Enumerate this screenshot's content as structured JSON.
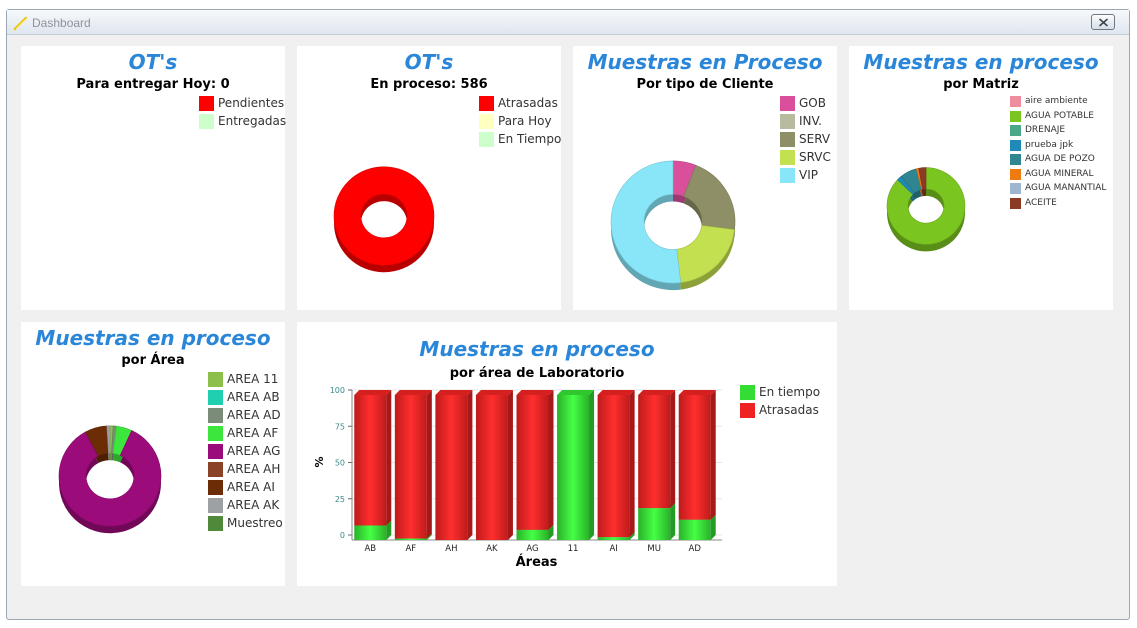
{
  "window": {
    "title": "Dashboard"
  },
  "panels": {
    "ot_hoy": {
      "title": "OT's",
      "subtitle": "Para entregar Hoy: 0",
      "legend": [
        {
          "label": "Pendientes",
          "color": "#ff0000"
        },
        {
          "label": "Entregadas",
          "color": "#ccffcc"
        }
      ]
    },
    "ot_proceso": {
      "title": "OT's",
      "subtitle": "En proceso: 586",
      "legend": [
        {
          "label": "Atrasadas",
          "color": "#ff0000"
        },
        {
          "label": "Para Hoy",
          "color": "#ffffc0"
        },
        {
          "label": "En Tiempo",
          "color": "#ccffcc"
        }
      ]
    },
    "muestras_cliente": {
      "title": "Muestras en Proceso",
      "subtitle": "Por tipo de Cliente",
      "legend": [
        {
          "label": "GOB",
          "color": "#d94f9c"
        },
        {
          "label": "INV.",
          "color": "#b8bb9f"
        },
        {
          "label": "SERV",
          "color": "#8e8f66"
        },
        {
          "label": "SRVC",
          "color": "#c2e04f"
        },
        {
          "label": "VIP",
          "color": "#88e6f8"
        }
      ]
    },
    "muestras_matriz": {
      "title": "Muestras en proceso",
      "subtitle": "por Matriz",
      "legend": [
        {
          "label": "aire ambiente",
          "color": "#f08ca0"
        },
        {
          "label": "AGUA POTABLE",
          "color": "#7ac520"
        },
        {
          "label": "DRENAJE",
          "color": "#4aa889"
        },
        {
          "label": "prueba jpk",
          "color": "#1f89b8"
        },
        {
          "label": "AGUA DE POZO",
          "color": "#2f8690"
        },
        {
          "label": "AGUA MINERAL",
          "color": "#ee7a12"
        },
        {
          "label": "AGUA MANANTIAL",
          "color": "#9fb5d0"
        },
        {
          "label": "ACEITE",
          "color": "#8b3a24"
        }
      ]
    },
    "muestras_area": {
      "title": "Muestras en proceso",
      "subtitle": "por Área",
      "legend": [
        {
          "label": "AREA 11",
          "color": "#8dc04a"
        },
        {
          "label": "AREA AB",
          "color": "#1fcfb0"
        },
        {
          "label": "AREA AD",
          "color": "#7b8c78"
        },
        {
          "label": "AREA AF",
          "color": "#3ce63c"
        },
        {
          "label": "AREA AG",
          "color": "#9b0b79"
        },
        {
          "label": "AREA AH",
          "color": "#8b4327"
        },
        {
          "label": "AREA AI",
          "color": "#6b2c06"
        },
        {
          "label": "AREA AK",
          "color": "#9ea1a3"
        },
        {
          "label": "Muestreo",
          "color": "#4f8a3b"
        }
      ]
    },
    "muestras_lab": {
      "title": "Muestras en proceso",
      "subtitle": "por área de Laboratorio",
      "legend": [
        {
          "label": "En tiempo",
          "color": "#33dd33"
        },
        {
          "label": "Atrasadas",
          "color": "#ee2222"
        }
      ]
    }
  },
  "chart_data": [
    {
      "type": "pie",
      "title": "OT's",
      "subtitle": "Para entregar Hoy: 0",
      "labels": [
        "Pendientes",
        "Entregadas"
      ],
      "values": [
        0,
        0
      ]
    },
    {
      "type": "pie",
      "title": "OT's",
      "subtitle": "En proceso: 586",
      "labels": [
        "Atrasadas",
        "Para Hoy",
        "En Tiempo"
      ],
      "values": [
        586,
        0,
        0
      ]
    },
    {
      "type": "pie",
      "title": "Muestras en Proceso",
      "subtitle": "Por tipo de Cliente",
      "labels": [
        "GOB",
        "INV.",
        "SERV",
        "SRVC",
        "VIP"
      ],
      "values": [
        6,
        0,
        21,
        21,
        52
      ]
    },
    {
      "type": "pie",
      "title": "Muestras en proceso",
      "subtitle": "por Matriz",
      "labels": [
        "aire ambiente",
        "AGUA POTABLE",
        "DRENAJE",
        "prueba jpk",
        "AGUA DE POZO",
        "AGUA MINERAL",
        "AGUA MANANTIAL",
        "ACEITE"
      ],
      "values": [
        0,
        87,
        0,
        2,
        7,
        1,
        0,
        3
      ]
    },
    {
      "type": "pie",
      "title": "Muestras en proceso",
      "subtitle": "por Área",
      "labels": [
        "AREA 11",
        "AREA AB",
        "AREA AD",
        "AREA AF",
        "AREA AG",
        "AREA AH",
        "AREA AI",
        "AREA AK",
        "Muestreo"
      ],
      "values": [
        1,
        0,
        1,
        5,
        85,
        0,
        7,
        1,
        0
      ]
    },
    {
      "type": "bar",
      "stacked": true,
      "title": "Muestras en proceso",
      "subtitle": "por área de Laboratorio",
      "xlabel": "Áreas",
      "ylabel": "%",
      "ylim": [
        0,
        100
      ],
      "yticks": [
        0,
        25,
        50,
        75,
        100
      ],
      "categories": [
        "AB",
        "AF",
        "AH",
        "AK",
        "AG",
        "11",
        "AI",
        "MU",
        "AD"
      ],
      "series": [
        {
          "name": "En tiempo",
          "values": [
            10,
            1,
            0,
            0,
            7,
            100,
            2,
            22,
            14
          ]
        },
        {
          "name": "Atrasadas",
          "values": [
            90,
            99,
            100,
            100,
            93,
            0,
            98,
            78,
            86
          ]
        }
      ]
    }
  ]
}
